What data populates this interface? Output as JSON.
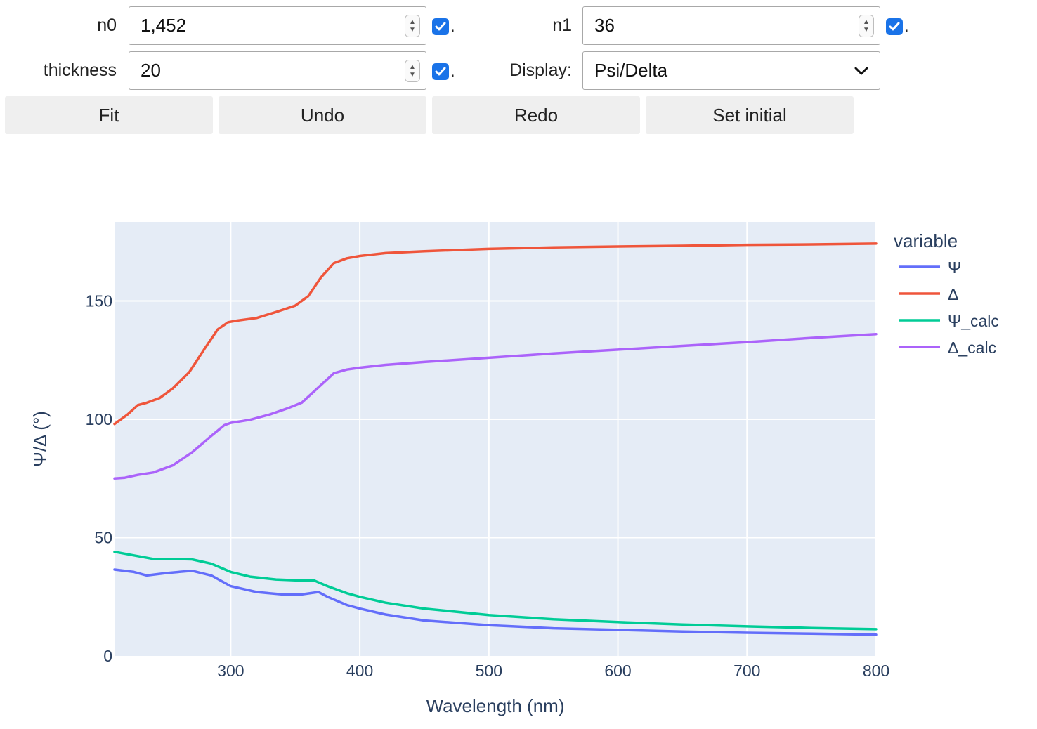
{
  "controls": {
    "n0": {
      "label": "n0",
      "value": "1,452",
      "checked": true
    },
    "n1": {
      "label": "n1",
      "value": "36",
      "checked": true
    },
    "thickness": {
      "label": "thickness",
      "value": "20",
      "checked": true
    },
    "display": {
      "label": "Display:",
      "value": "Psi/Delta"
    },
    "checkbox_suffix": "."
  },
  "buttons": {
    "fit": "Fit",
    "undo": "Undo",
    "redo": "Redo",
    "set_initial": "Set initial"
  },
  "chart_data": {
    "type": "line",
    "xlabel": "Wavelength (nm)",
    "ylabel": "Ψ/Δ (°)",
    "xlim": [
      210,
      800
    ],
    "ylim": [
      0,
      180
    ],
    "xticks": [
      300,
      400,
      500,
      600,
      700,
      800
    ],
    "yticks": [
      0,
      50,
      100,
      150
    ],
    "grid": true,
    "legend_title": "variable",
    "legend_position": "right",
    "series": [
      {
        "name": "Ψ",
        "color": "#636efa",
        "x": [
          210,
          225,
          235,
          250,
          270,
          285,
          300,
          320,
          340,
          355,
          368,
          375,
          390,
          400,
          420,
          450,
          500,
          550,
          600,
          650,
          700,
          750,
          800
        ],
        "y": [
          36.5,
          35.5,
          34,
          35,
          36,
          34,
          29.5,
          27,
          26,
          26,
          27,
          25,
          21.5,
          20,
          17.5,
          15,
          13,
          11.7,
          11,
          10.3,
          9.8,
          9.4,
          9
        ]
      },
      {
        "name": "Δ",
        "color": "#ef553b",
        "x": [
          210,
          220,
          228,
          235,
          245,
          255,
          268,
          280,
          290,
          298,
          305,
          320,
          335,
          350,
          360,
          370,
          380,
          390,
          400,
          420,
          450,
          500,
          550,
          600,
          650,
          700,
          750,
          800
        ],
        "y": [
          98,
          102,
          106,
          107,
          109,
          113,
          120,
          130,
          138,
          141,
          141.7,
          142.8,
          145.3,
          148,
          152,
          160,
          166,
          168,
          169,
          170.2,
          171,
          172,
          172.6,
          173,
          173.3,
          173.7,
          173.9,
          174.2
        ]
      },
      {
        "name": "Ψ_calc",
        "color": "#00cc96",
        "x": [
          210,
          225,
          240,
          255,
          270,
          285,
          300,
          315,
          335,
          350,
          365,
          375,
          390,
          400,
          420,
          450,
          500,
          550,
          600,
          650,
          700,
          750,
          800
        ],
        "y": [
          44,
          42.5,
          41,
          41,
          40.8,
          39,
          35.5,
          33.5,
          32.3,
          32,
          31.8,
          29.5,
          26.5,
          25,
          22.5,
          20,
          17.3,
          15.5,
          14.3,
          13.3,
          12.5,
          11.8,
          11.3
        ]
      },
      {
        "name": "Δ_calc",
        "color": "#ab63fa",
        "x": [
          210,
          218,
          228,
          240,
          255,
          270,
          285,
          295,
          300,
          315,
          330,
          345,
          355,
          365,
          375,
          380,
          390,
          400,
          420,
          450,
          500,
          550,
          600,
          650,
          700,
          750,
          800
        ],
        "y": [
          75,
          75.3,
          76.5,
          77.5,
          80.5,
          86,
          93,
          97.5,
          98.5,
          99.8,
          102,
          104.8,
          107,
          112,
          117,
          119.5,
          121,
          121.8,
          123,
          124.2,
          126,
          127.8,
          129.4,
          131,
          132.6,
          134.4,
          136
        ]
      }
    ]
  }
}
